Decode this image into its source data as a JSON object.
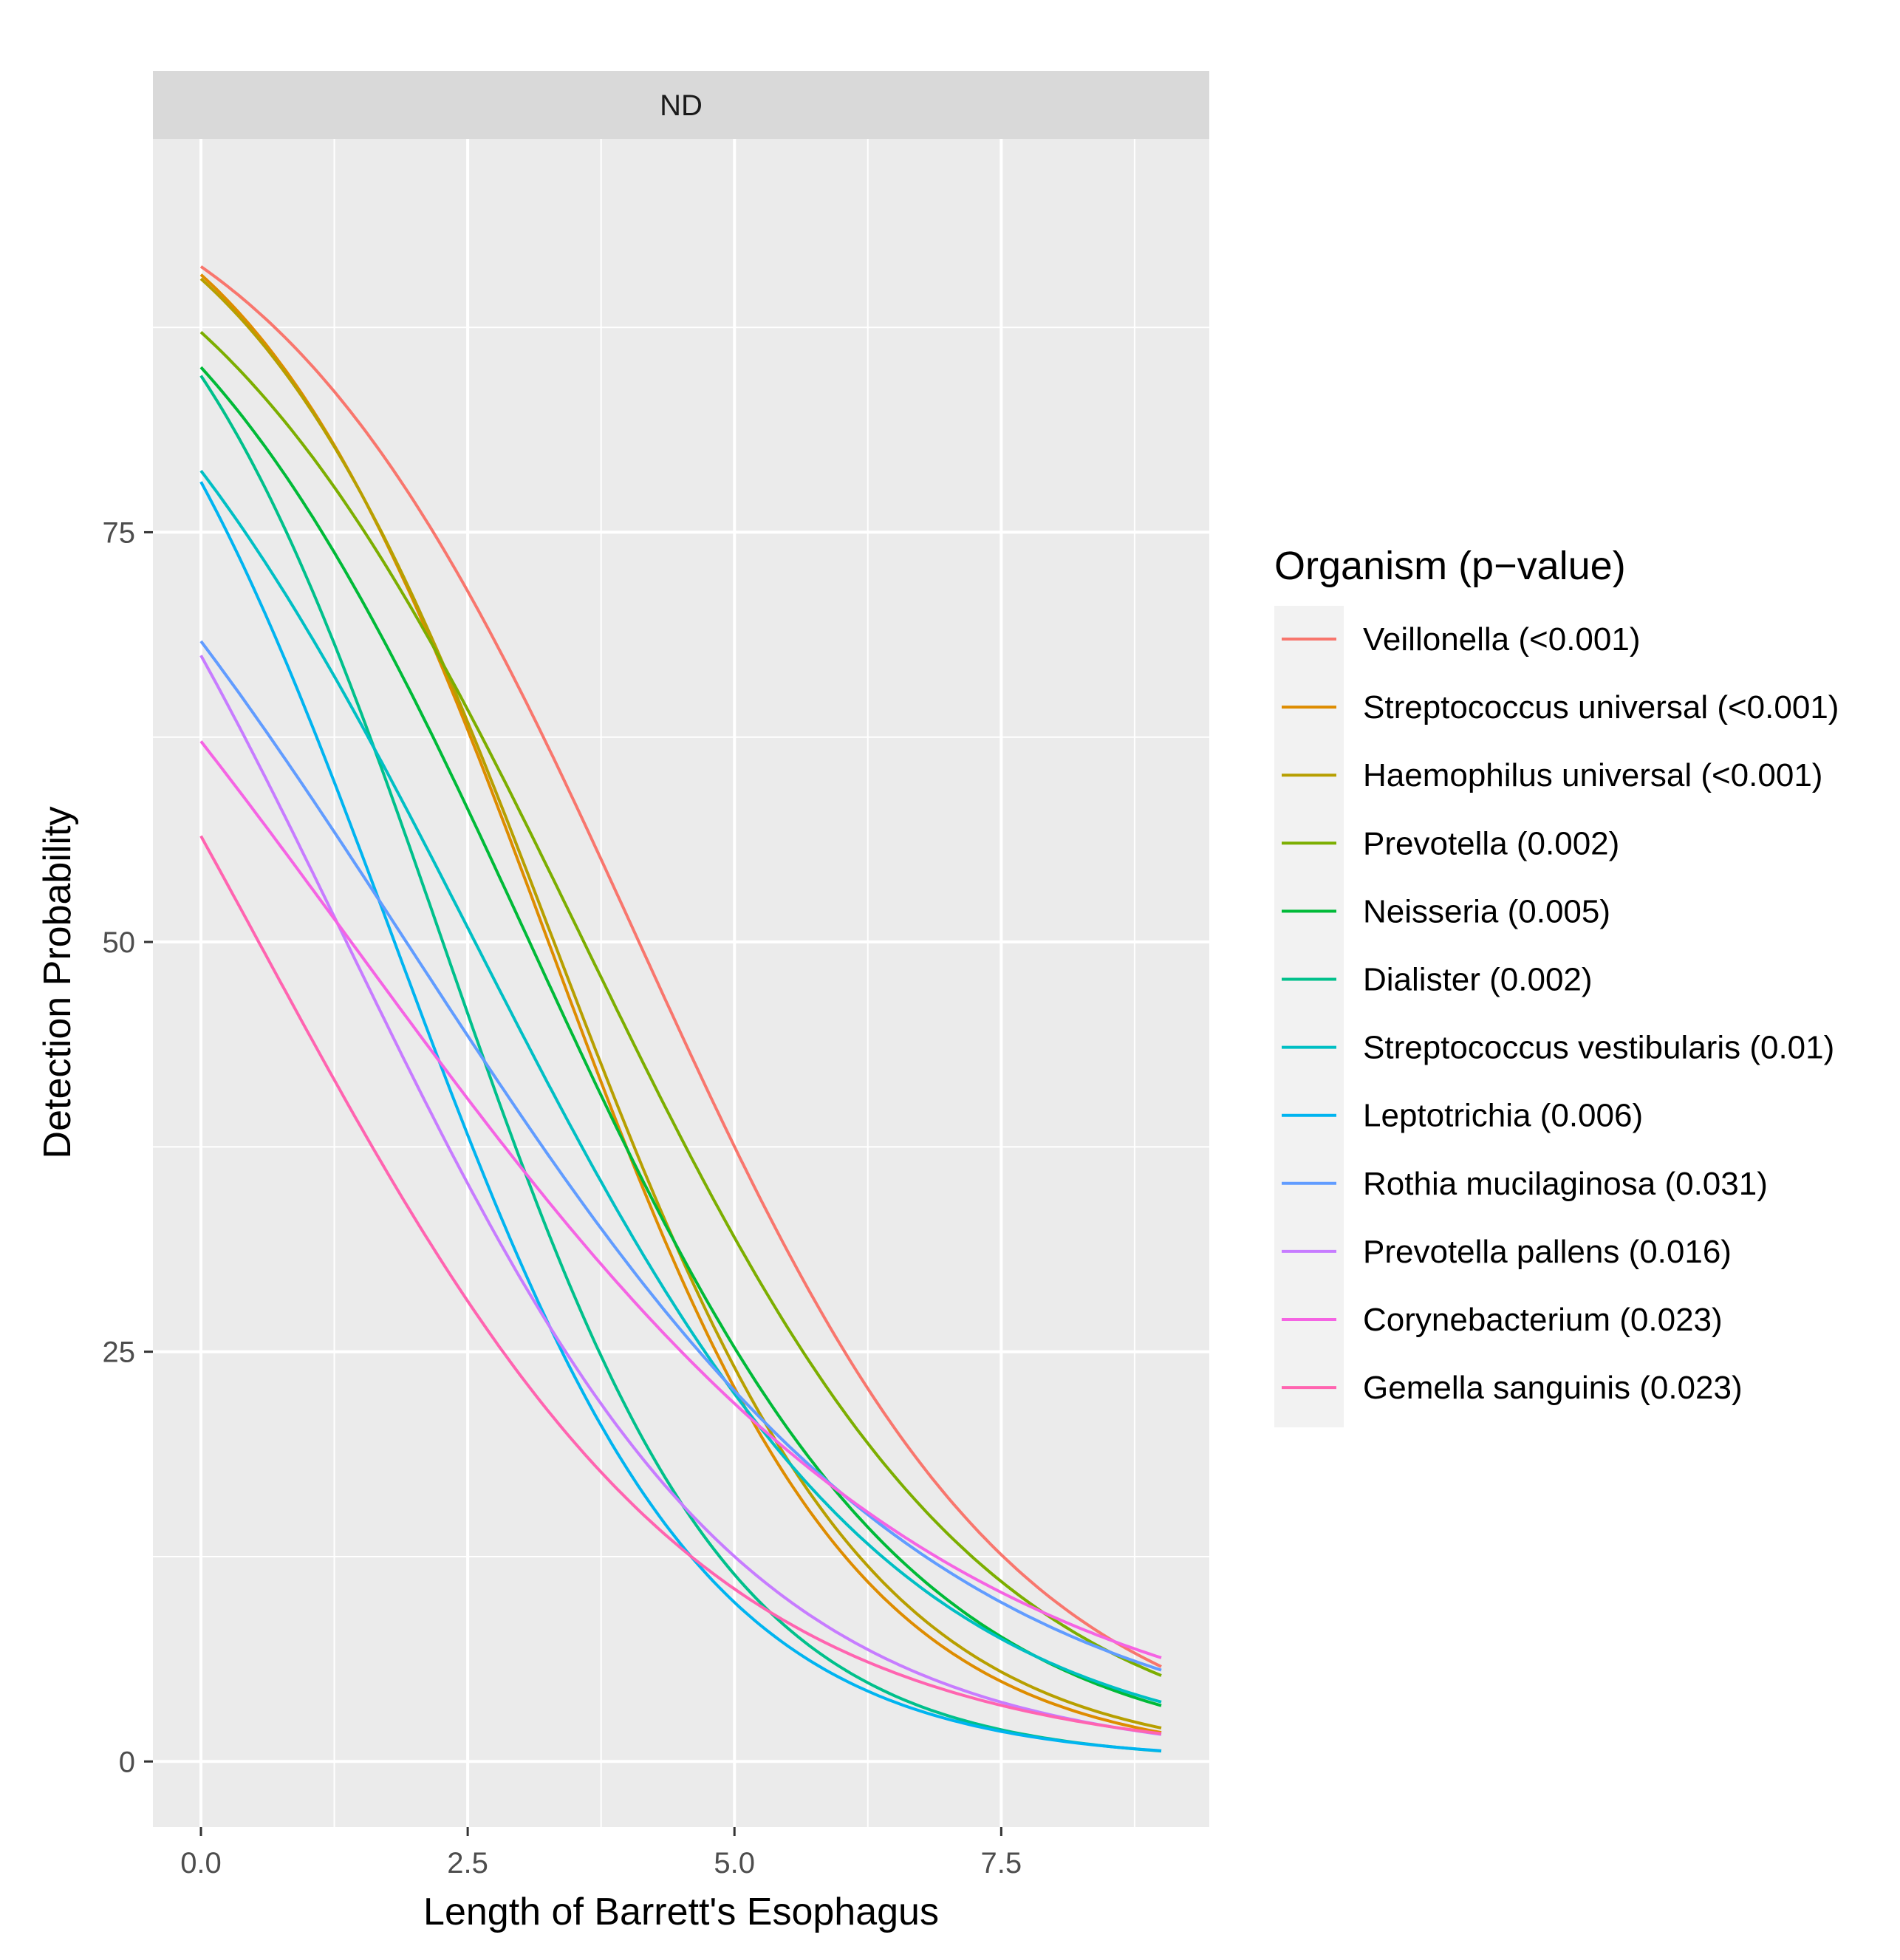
{
  "chart_data": {
    "type": "line",
    "facet_label": "ND",
    "xlabel": "Length of Barrett's Esophagus",
    "ylabel": "Detection Probability",
    "xlim": [
      -0.45,
      9.45
    ],
    "ylim": [
      -4,
      99
    ],
    "x_ticks": [
      0.0,
      2.5,
      5.0,
      7.5
    ],
    "x_tick_labels": [
      "0.0",
      "2.5",
      "5.0",
      "7.5"
    ],
    "y_ticks": [
      0,
      25,
      50,
      75
    ],
    "y_tick_labels": [
      "0",
      "25",
      "50",
      "75"
    ],
    "x_range": [
      0,
      9
    ],
    "grid": true,
    "legend_title": "Organism (p−value)",
    "legend_position": "right",
    "series": [
      {
        "name": "Veillonella (<0.001)",
        "color": "#F8766D",
        "intercept": 2.34,
        "slope": -0.57
      },
      {
        "name": "Streptococcus universal (<0.001)",
        "color": "#DE8C00",
        "intercept": 2.28,
        "slope": -0.7
      },
      {
        "name": "Haemophilus universal (<0.001)",
        "color": "#B79F00",
        "intercept": 2.25,
        "slope": -0.68
      },
      {
        "name": "Prevotella (0.002)",
        "color": "#7CAE00",
        "intercept": 1.92,
        "slope": -0.535
      },
      {
        "name": "Neisseria (0.005)",
        "color": "#00BA38",
        "intercept": 1.74,
        "slope": -0.565
      },
      {
        "name": "Dialister (0.002)",
        "color": "#00C08B",
        "intercept": 1.7,
        "slope": -0.75
      },
      {
        "name": "Streptococcus vestibularis (0.01)",
        "color": "#00BFC4",
        "intercept": 1.31,
        "slope": -0.51
      },
      {
        "name": "Leptotrichia (0.006)",
        "color": "#00B4F0",
        "intercept": 1.27,
        "slope": -0.7
      },
      {
        "name": "Rothia mucilaginosa (0.031)",
        "color": "#619CFF",
        "intercept": 0.77,
        "slope": -0.4
      },
      {
        "name": "Prevotella pallens (0.016)",
        "color": "#C77CFF",
        "intercept": 0.73,
        "slope": -0.535
      },
      {
        "name": "Corynebacterium (0.023)",
        "color": "#F564E3",
        "intercept": 0.5,
        "slope": -0.355
      },
      {
        "name": "Gemella sanguinis (0.023)",
        "color": "#FF64B0",
        "intercept": 0.26,
        "slope": -0.48
      }
    ]
  }
}
